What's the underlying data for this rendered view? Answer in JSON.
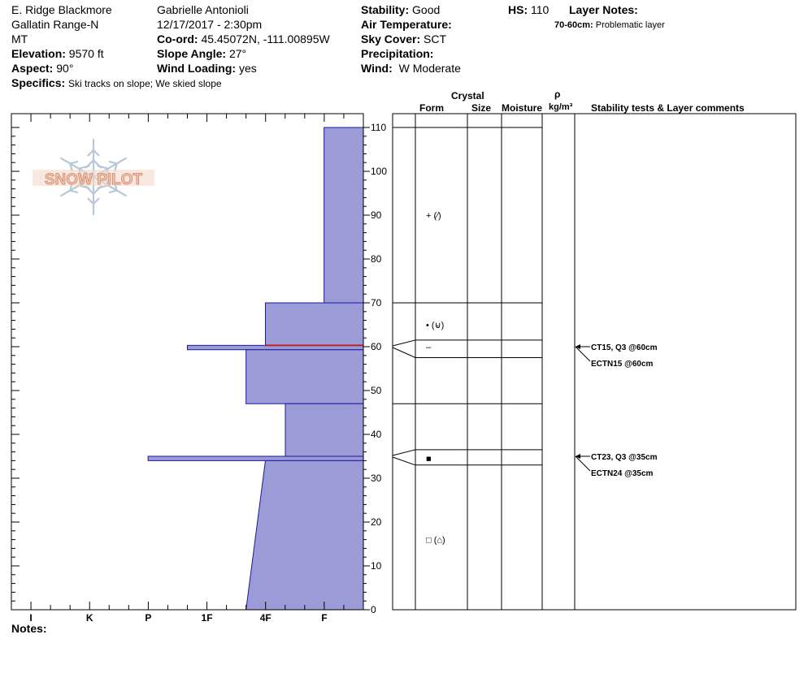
{
  "header": {
    "location": "E. Ridge Blackmore",
    "range": "Gallatin Range-N",
    "state": "MT",
    "elevation_label": "Elevation:",
    "elevation": "9570 ft",
    "aspect_label": "Aspect:",
    "aspect": "90°",
    "specifics_label": "Specifics:",
    "specifics": "Ski tracks on slope; We skied slope",
    "observer": "Gabrielle Antonioli",
    "datetime": "12/17/2017 - 2:30pm",
    "coord_label": "Co-ord:",
    "coord": "45.45072N, -111.00895W",
    "slope_label": "Slope Angle:",
    "slope": "27°",
    "windload_label": "Wind Loading:",
    "windload": "yes",
    "stability_label": "Stability:",
    "stability": "Good",
    "airtemp_label": "Air Temperature:",
    "sky_label": "Sky Cover:",
    "sky": "SCT",
    "precip_label": "Precipitation:",
    "wind_label": "Wind:",
    "wind": "W Moderate",
    "hs_label": "HS:",
    "hs": "110",
    "layernotes_label": "Layer Notes:",
    "layernote_depth": "70-60cm:",
    "layernote_text": "Problematic layer",
    "notes_label": "Notes:"
  },
  "logo": {
    "text": "SNOW PILOT"
  },
  "columns": {
    "crystal": "Crystal",
    "form": "Form",
    "size": "Size",
    "moisture": "Moisture",
    "rho": "ρ",
    "density_unit": "kg/m³",
    "stability_tests": "Stability tests & Layer comments"
  },
  "colors": {
    "hardness_fill": "#9b9bd8",
    "hardness_stroke": "#1a1aa0",
    "weak_layer": "#c0202a",
    "logo": "#e8a888"
  },
  "chart_data": {
    "type": "snow-profile",
    "y_axis": {
      "label": "",
      "range": [
        0,
        110
      ],
      "ticks": [
        0,
        10,
        20,
        30,
        40,
        50,
        60,
        70,
        80,
        90,
        100,
        110
      ]
    },
    "x_axis": {
      "hardness_scale": [
        "F",
        "4F",
        "1F",
        "P",
        "K",
        "I"
      ],
      "tick_labels": [
        "I",
        "K",
        "P",
        "1F",
        "4F",
        "F"
      ]
    },
    "hardness_layers": [
      {
        "top": 110,
        "bottom": 70,
        "hardness": 0.67
      },
      {
        "top": 70,
        "bottom": 60.3,
        "hardness": 1.67
      },
      {
        "top": 60.3,
        "bottom": 59.3,
        "hardness": 3.0
      },
      {
        "top": 59.3,
        "bottom": 47,
        "hardness": 2.0
      },
      {
        "top": 47,
        "bottom": 35,
        "hardness": 1.33
      },
      {
        "top": 35,
        "bottom": 34,
        "hardness": 3.67
      },
      {
        "top": 34,
        "bottom": 0,
        "hardness": [
          1.67,
          2.0
        ]
      }
    ],
    "weak_layer_depth": 60.3,
    "layer_boundaries": [
      110,
      70,
      61.5,
      57.5,
      47,
      36.5,
      33
    ],
    "grain_forms": [
      {
        "depth": 90,
        "symbol": "+ (⁄)"
      },
      {
        "depth": 65,
        "symbol": "• (⊌)"
      },
      {
        "depth": 60,
        "symbol": "–"
      },
      {
        "depth": 34.5,
        "symbol": "■"
      },
      {
        "depth": 16,
        "symbol": "□ (⌂)"
      }
    ],
    "stability_tests": [
      {
        "depth": 60,
        "line1": "CT15, Q3 @60cm",
        "line2": "ECTN15 @60cm"
      },
      {
        "depth": 35,
        "line1": "CT23, Q3 @35cm",
        "line2": "ECTN24 @35cm"
      }
    ]
  }
}
